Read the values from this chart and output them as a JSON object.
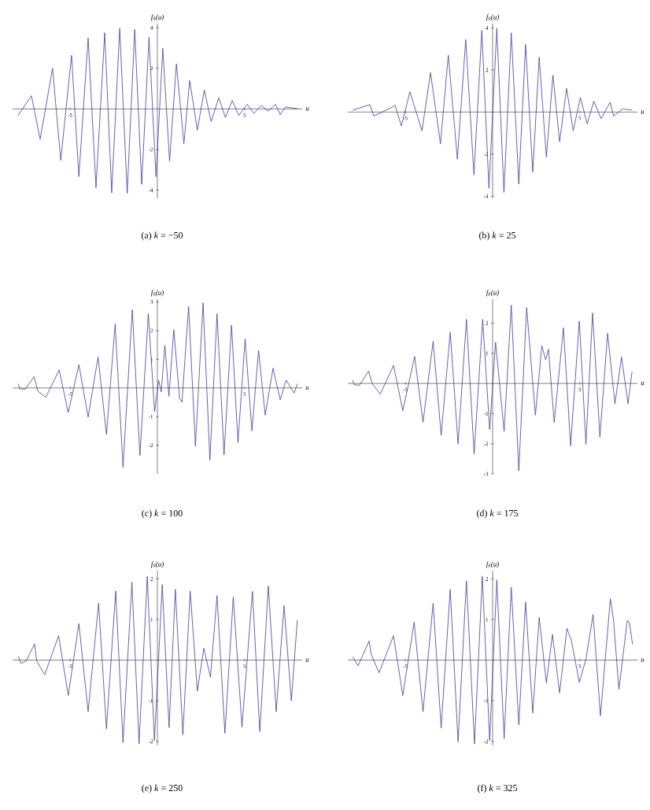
{
  "chart_data": [
    {
      "type": "line",
      "title": "(a) *k* = −50",
      "xlabel": "u",
      "ylabel": "f$_{0}$(u)",
      "color": "#3c3c9c",
      "xlim": [
        -8.3,
        8.3
      ],
      "ylim": [
        -4.4,
        4.2
      ],
      "xticks": [
        -5,
        5
      ],
      "yticks": [
        -4,
        -2,
        2,
        4
      ],
      "x": [
        -8.0,
        -7.22,
        -6.72,
        -6.01,
        -5.54,
        -4.92,
        -4.5,
        -3.97,
        -3.52,
        -3.02,
        -2.62,
        -2.16,
        -1.73,
        -1.3,
        -0.9,
        -0.48,
        -0.08,
        0.31,
        0.7,
        1.09,
        1.52,
        1.85,
        2.29,
        2.69,
        3.08,
        3.52,
        3.9,
        4.29,
        4.67,
        5.15,
        5.53,
        5.95,
        6.36,
        6.77,
        7.04,
        7.34,
        8.06
      ],
      "values": [
        -0.34,
        0.65,
        -1.49,
        2.0,
        -2.53,
        2.64,
        -3.33,
        3.49,
        -3.87,
        3.75,
        -4.13,
        3.97,
        -4.15,
        3.91,
        -3.71,
        3.53,
        -3.33,
        2.98,
        -2.57,
        2.22,
        -1.71,
        1.4,
        -1.04,
        0.93,
        -0.62,
        0.55,
        -0.42,
        0.42,
        -0.32,
        0.23,
        -0.22,
        0.17,
        -0.11,
        0.23,
        -0.28,
        0.1,
        0.01
      ]
    },
    {
      "type": "line",
      "title": "(b) *k* = 25",
      "xlabel": "u",
      "ylabel": "f$_{0}$(u)",
      "color": "#3c3c9c",
      "xlim": [
        -8.3,
        8.3
      ],
      "ylim": [
        -4.1,
        4.2
      ],
      "xticks": [
        -5,
        5
      ],
      "yticks": [
        -4,
        -2,
        2,
        4
      ],
      "x": [
        -8.02,
        -7.04,
        -6.81,
        -5.76,
        -5.6,
        -5.23,
        -4.74,
        -4.05,
        -3.56,
        -2.99,
        -2.54,
        -2.02,
        -1.54,
        -1.07,
        -0.62,
        -0.21,
        0.24,
        0.65,
        1.07,
        1.5,
        1.89,
        2.3,
        2.67,
        3.08,
        3.46,
        3.84,
        4.24,
        4.62,
        5.03,
        5.42,
        5.8,
        6.22,
        6.74,
        6.93,
        7.46,
        7.99
      ],
      "values": [
        0.09,
        0.35,
        -0.19,
        0.23,
        0.32,
        -0.66,
        0.96,
        -0.89,
        1.87,
        -1.51,
        2.7,
        -2.24,
        3.45,
        -2.99,
        3.88,
        -3.62,
        3.98,
        -3.82,
        3.76,
        -3.42,
        3.21,
        -2.85,
        2.6,
        -2.14,
        1.75,
        -1.41,
        1.12,
        -0.89,
        0.69,
        -0.56,
        0.51,
        -0.32,
        0.47,
        -0.19,
        0.15,
        0.09
      ]
    },
    {
      "type": "line",
      "title": "(c) *k* = 100",
      "xlabel": "u",
      "ylabel": "f$_{0}$(u)",
      "color": "#3c3c9c",
      "xlim": [
        -8.3,
        8.3
      ],
      "ylim": [
        -3,
        3.1
      ],
      "xticks": [
        -5,
        5
      ],
      "yticks": [
        -2,
        -1,
        1,
        2,
        3
      ],
      "x": [
        -7.97,
        -7.9,
        -7.59,
        -7.07,
        -6.84,
        -6.39,
        -5.63,
        -5.11,
        -4.5,
        -3.97,
        -3.4,
        -2.92,
        -2.42,
        -1.97,
        -1.44,
        -1.0,
        -0.52,
        -0.16,
        0.07,
        0.22,
        0.43,
        0.66,
        0.94,
        1.27,
        1.41,
        1.79,
        2.18,
        2.62,
        3.01,
        3.42,
        3.82,
        4.25,
        4.62,
        5.03,
        5.42,
        5.8,
        6.18,
        6.63,
        7.04,
        7.38,
        7.84,
        8.02
      ],
      "values": [
        0.14,
        -0.03,
        -0.05,
        0.39,
        -0.12,
        -0.32,
        0.63,
        -0.86,
        0.81,
        -1.02,
        1.08,
        -1.62,
        2.23,
        -2.77,
        2.73,
        -2.36,
        2.59,
        -0.83,
        0.27,
        -0.14,
        1.49,
        -0.29,
        2.03,
        -0.36,
        -0.5,
        2.84,
        -2.03,
        2.97,
        -2.52,
        2.59,
        -2.34,
        2.19,
        -1.91,
        1.71,
        -1.5,
        1.31,
        -0.95,
        0.69,
        -0.41,
        0.27,
        -0.18,
        0.14
      ]
    },
    {
      "type": "line",
      "title": "(d) *k* = 175",
      "xlabel": "u",
      "ylabel": "f$_{0}$(u)",
      "color": "#3c3c9c",
      "xlim": [
        -8.3,
        8.3
      ],
      "ylim": [
        -3,
        2.8
      ],
      "xticks": [
        -5,
        5
      ],
      "yticks": [
        -3,
        -2,
        -1,
        1,
        2
      ],
      "x": [
        -8.02,
        -7.94,
        -7.64,
        -7.11,
        -6.89,
        -6.44,
        -5.68,
        -5.15,
        -4.47,
        -3.99,
        -3.41,
        -2.95,
        -2.43,
        -1.98,
        -1.5,
        -1.06,
        -0.57,
        -0.17,
        0.17,
        0.66,
        1.07,
        1.5,
        1.95,
        2.45,
        2.82,
        3.04,
        3.2,
        3.53,
        4.06,
        4.47,
        4.97,
        5.35,
        5.73,
        6.15,
        6.59,
        7.01,
        7.39,
        7.76,
        7.99
      ],
      "values": [
        0.11,
        -0.04,
        -0.06,
        0.41,
        -0.02,
        -0.35,
        0.6,
        -0.9,
        0.9,
        -1.29,
        1.4,
        -1.72,
        1.7,
        -2.0,
        2.13,
        -2.34,
        2.13,
        -1.53,
        1.37,
        -1.59,
        2.6,
        -2.9,
        2.52,
        -1.05,
        1.25,
        0.79,
        1.14,
        -1.29,
        1.85,
        -2.07,
        2.07,
        -2.02,
        2.34,
        -1.78,
        1.67,
        -0.67,
        0.88,
        -0.67,
        0.39
      ]
    },
    {
      "type": "line",
      "title": "(e) *k* = 250",
      "xlabel": "u",
      "ylabel": "f$_{0}$(u)",
      "color": "#3c3c9c",
      "xlim": [
        -8.3,
        8.3
      ],
      "ylim": [
        -2.1,
        2.2
      ],
      "xticks": [
        -5,
        5
      ],
      "yticks": [
        -2,
        -1,
        1,
        2
      ],
      "x": [
        -7.97,
        -7.82,
        -7.52,
        -7.04,
        -6.92,
        -6.46,
        -5.66,
        -5.11,
        -4.5,
        -3.97,
        -3.37,
        -2.92,
        -2.39,
        -1.97,
        -1.46,
        -1.05,
        -0.58,
        -0.17,
        0.28,
        0.67,
        1.03,
        1.46,
        1.88,
        2.29,
        2.66,
        3.04,
        3.42,
        3.87,
        4.35,
        4.85,
        5.45,
        5.87,
        6.36,
        6.81,
        7.26,
        7.68,
        8.02
      ],
      "values": [
        0.09,
        -0.08,
        -0.02,
        0.4,
        -0.02,
        -0.36,
        0.6,
        -0.87,
        0.9,
        -1.27,
        1.4,
        -1.69,
        1.7,
        -2.03,
        1.92,
        -2.06,
        2.06,
        -1.98,
        1.86,
        -1.66,
        1.74,
        -1.84,
        1.7,
        -0.76,
        0.29,
        -0.42,
        1.59,
        -1.8,
        1.55,
        -1.65,
        1.69,
        -1.76,
        1.82,
        -1.27,
        1.34,
        -1.0,
        0.98
      ]
    },
    {
      "type": "line",
      "title": "(f) *k* = 325",
      "xlabel": "u",
      "ylabel": "f$_{0}$(u)",
      "color": "#3c3c9c",
      "xlim": [
        -8.3,
        8.3
      ],
      "ylim": [
        -2.1,
        2.2
      ],
      "xticks": [
        -5,
        5
      ],
      "yticks": [
        -2,
        -1,
        1,
        2
      ],
      "x": [
        -8.02,
        -7.72,
        -7.42,
        -7.08,
        -6.96,
        -6.51,
        -5.68,
        -5.15,
        -4.5,
        -3.99,
        -3.41,
        -2.95,
        -2.43,
        -1.98,
        -1.5,
        -1.04,
        -0.59,
        -0.17,
        0.24,
        0.66,
        1.07,
        1.5,
        1.89,
        2.3,
        2.67,
        3.08,
        3.43,
        3.84,
        4.26,
        4.52,
        4.97,
        5.35,
        5.76,
        6.18,
        6.75,
        6.93,
        7.24,
        7.72,
        7.84,
        8.02
      ],
      "values": [
        0.08,
        -0.14,
        0.14,
        0.47,
        0.14,
        -0.31,
        0.6,
        -0.87,
        0.93,
        -1.27,
        1.4,
        -1.67,
        1.74,
        -2.01,
        1.95,
        -2.06,
        2.06,
        -1.98,
        1.97,
        -1.93,
        1.79,
        -1.59,
        1.43,
        -1.3,
        1.05,
        -0.56,
        0.63,
        -0.81,
        0.78,
        0.47,
        -0.55,
        0.03,
        1.12,
        -1.37,
        1.51,
        0.98,
        -0.72,
        0.98,
        0.92,
        0.39
      ]
    }
  ]
}
